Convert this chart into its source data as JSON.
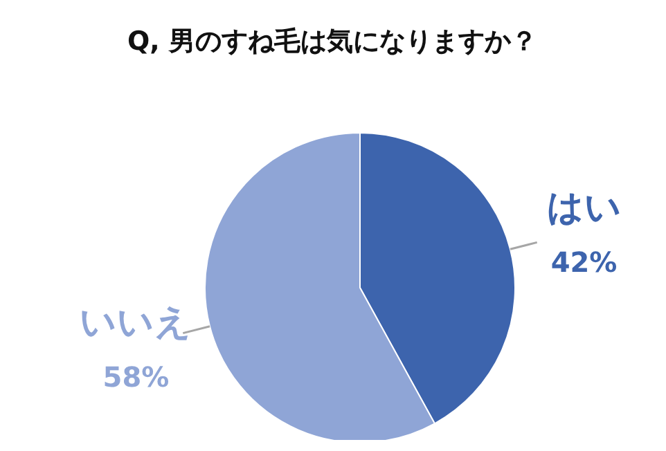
{
  "chart_data": {
    "type": "pie",
    "title": "Q, 男のすね毛は気になりますか？",
    "categories": [
      "はい",
      "いいえ"
    ],
    "values": [
      42,
      58
    ],
    "colors": [
      "#3d64ad",
      "#8fa5d6"
    ],
    "value_labels": [
      "42%",
      "58%"
    ],
    "legend": false
  }
}
